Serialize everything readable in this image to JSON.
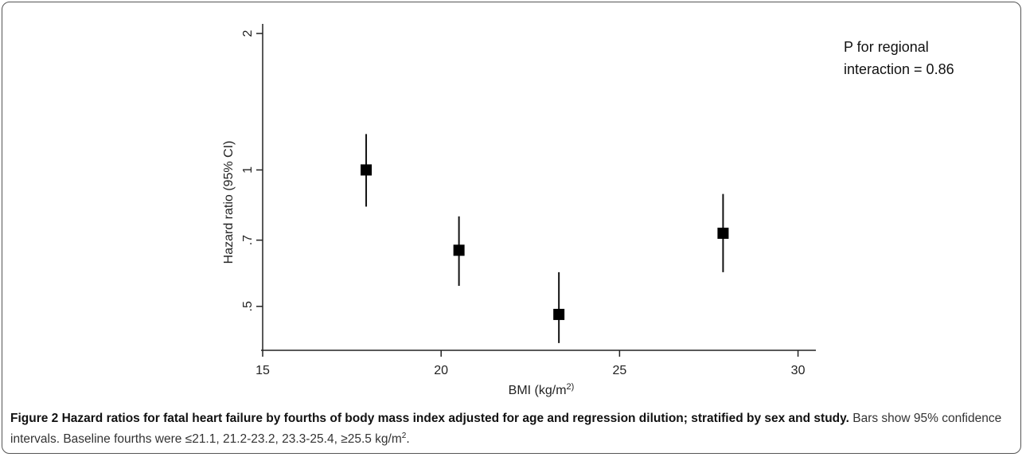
{
  "chart_data": {
    "type": "scatter",
    "xlabel": "BMI (kg/m",
    "xlabel_superscript": "2)",
    "ylabel": "Hazard ratio (95% CI)",
    "y_scale": "log",
    "xlim": [
      15,
      30.5
    ],
    "ylim": [
      0.4,
      2.1
    ],
    "x_ticks": [
      15,
      20,
      25,
      30
    ],
    "x_tick_labels": [
      "15",
      "20",
      "25",
      "30"
    ],
    "y_ticks": [
      0.5,
      0.7,
      1,
      2
    ],
    "y_tick_labels": [
      ".5",
      ".7",
      "1",
      "2"
    ],
    "points": [
      {
        "x": 17.9,
        "y": 1.0,
        "ci_low": 0.83,
        "ci_high": 1.2
      },
      {
        "x": 20.5,
        "y": 0.665,
        "ci_low": 0.555,
        "ci_high": 0.79
      },
      {
        "x": 23.3,
        "y": 0.48,
        "ci_low": 0.415,
        "ci_high": 0.595
      },
      {
        "x": 27.9,
        "y": 0.725,
        "ci_low": 0.595,
        "ci_high": 0.885
      }
    ],
    "annotation_lines": [
      "P for regional",
      "interaction = 0.86"
    ],
    "grid": false,
    "marker": "square",
    "marker_color": "#000000"
  },
  "caption": {
    "label": "Figure 2 Hazard ratios for fatal heart failure by fourths of body mass index adjusted for age and regression dilution; stratified by sex and study.",
    "body": "Bars show 95% confidence intervals. Baseline fourths were ≤21.1, 21.2-23.2, 23.3-25.4, ≥25.5 kg/m",
    "body_superscript": "2",
    "body_end": "."
  }
}
